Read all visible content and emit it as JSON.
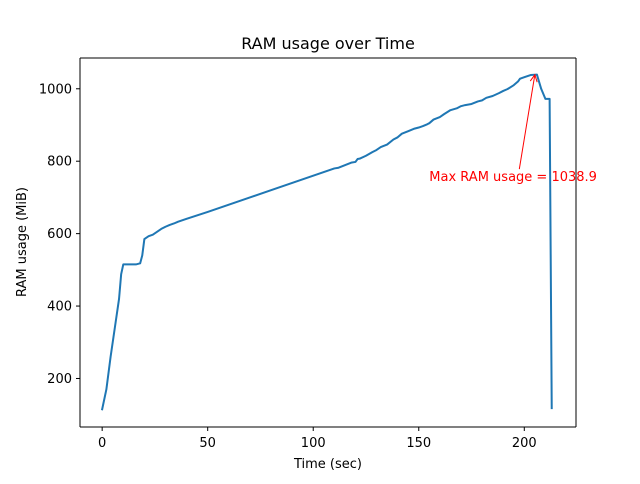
{
  "chart_data": {
    "type": "line",
    "title": "RAM usage over Time",
    "xlabel": "Time (sec)",
    "ylabel": "RAM usage (MiB)",
    "xlim": [
      -10.5,
      224.5
    ],
    "ylim": [
      66,
      1085
    ],
    "xticks": [
      0,
      50,
      100,
      150,
      200
    ],
    "yticks": [
      200,
      400,
      600,
      800,
      1000
    ],
    "grid": false,
    "legend": "none",
    "series": [
      {
        "color": "#1f77b4",
        "x": [
          0,
          2,
          4,
          6,
          8,
          9,
          10,
          12,
          14,
          16,
          18,
          19,
          20,
          22,
          24,
          26,
          28,
          30,
          32,
          34,
          36,
          40,
          50,
          60,
          70,
          80,
          90,
          100,
          110,
          112,
          115,
          118,
          120,
          121,
          122,
          125,
          128,
          130,
          132,
          135,
          138,
          140,
          142,
          145,
          148,
          150,
          152,
          154,
          155,
          157,
          160,
          162,
          165,
          168,
          170,
          172,
          175,
          178,
          180,
          182,
          185,
          188,
          190,
          192,
          195,
          197,
          198,
          200,
          203,
          205,
          206,
          208,
          210,
          211,
          212,
          213
        ],
        "y": [
          115,
          170,
          260,
          340,
          420,
          488,
          515,
          515,
          515,
          515,
          518,
          540,
          585,
          593,
          597,
          605,
          613,
          619,
          624,
          628,
          633,
          641,
          660,
          680,
          700,
          720,
          740,
          760,
          780,
          782,
          789,
          796,
          798,
          806,
          807,
          815,
          825,
          831,
          839,
          846,
          860,
          866,
          876,
          883,
          890,
          893,
          897,
          902,
          905,
          915,
          922,
          930,
          941,
          946,
          952,
          955,
          958,
          965,
          968,
          975,
          980,
          988,
          994,
          999,
          1010,
          1020,
          1028,
          1032,
          1038,
          1038.9,
          1039,
          1000,
          972,
          972,
          972,
          118
        ]
      }
    ],
    "annotations": [
      {
        "text": "Max RAM usage = 1038.9",
        "color": "#ff0000",
        "point": [
          205,
          1038.9
        ],
        "text_xy": [
          155,
          745
        ]
      }
    ]
  }
}
